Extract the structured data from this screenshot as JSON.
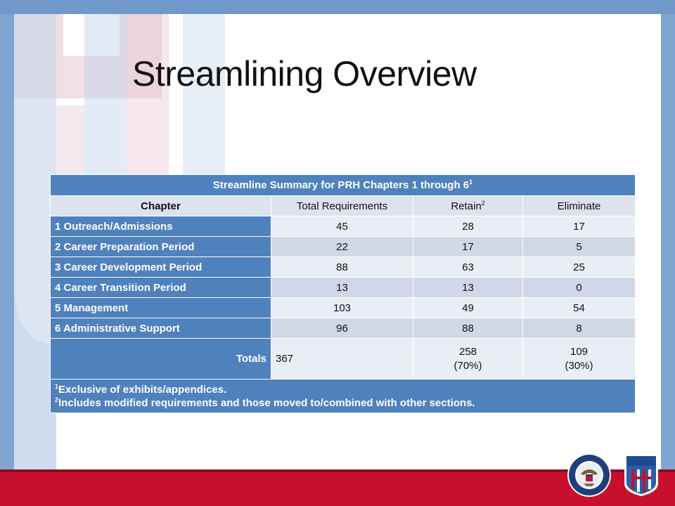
{
  "title": "Streamlining Overview",
  "table": {
    "caption": "Streamline Summary for PRH Chapters 1 through 6",
    "caption_sup": "1",
    "headers": {
      "chapter": "Chapter",
      "total": "Total Requirements",
      "retain": "Retain",
      "retain_sup": "2",
      "eliminate": "Eliminate"
    },
    "rows": [
      {
        "chapter": "1 Outreach/Admissions",
        "total": "45",
        "retain": "28",
        "eliminate": "17"
      },
      {
        "chapter": "2 Career Preparation Period",
        "total": "22",
        "retain": "17",
        "eliminate": "5"
      },
      {
        "chapter": "3 Career Development Period",
        "total": "88",
        "retain": "63",
        "eliminate": "25"
      },
      {
        "chapter": "4 Career Transition Period",
        "total": "13",
        "retain": "13",
        "eliminate": "0"
      },
      {
        "chapter": "5 Management",
        "total": "103",
        "retain": "49",
        "eliminate": "54"
      },
      {
        "chapter": "6 Administrative Support",
        "total": "96",
        "retain": "88",
        "eliminate": "8"
      }
    ],
    "totals": {
      "label": "Totals",
      "total": "367",
      "retain": "258",
      "retain_pct": "(70%)",
      "eliminate": "109",
      "eliminate_pct": "(30%)"
    },
    "footnotes": [
      {
        "sup": "1",
        "text": "Exclusive of exhibits/appendices."
      },
      {
        "sup": "2",
        "text": "Includes modified requirements and those moved to/combined with other sections."
      }
    ]
  },
  "logos": {
    "seal": "department-of-labor-seal",
    "job_corps": "job-corps-logo"
  },
  "colors": {
    "accent_blue": "#4f81bd",
    "bottom_bar_red": "#c8102e",
    "background_blue": "#7fa6d0"
  }
}
